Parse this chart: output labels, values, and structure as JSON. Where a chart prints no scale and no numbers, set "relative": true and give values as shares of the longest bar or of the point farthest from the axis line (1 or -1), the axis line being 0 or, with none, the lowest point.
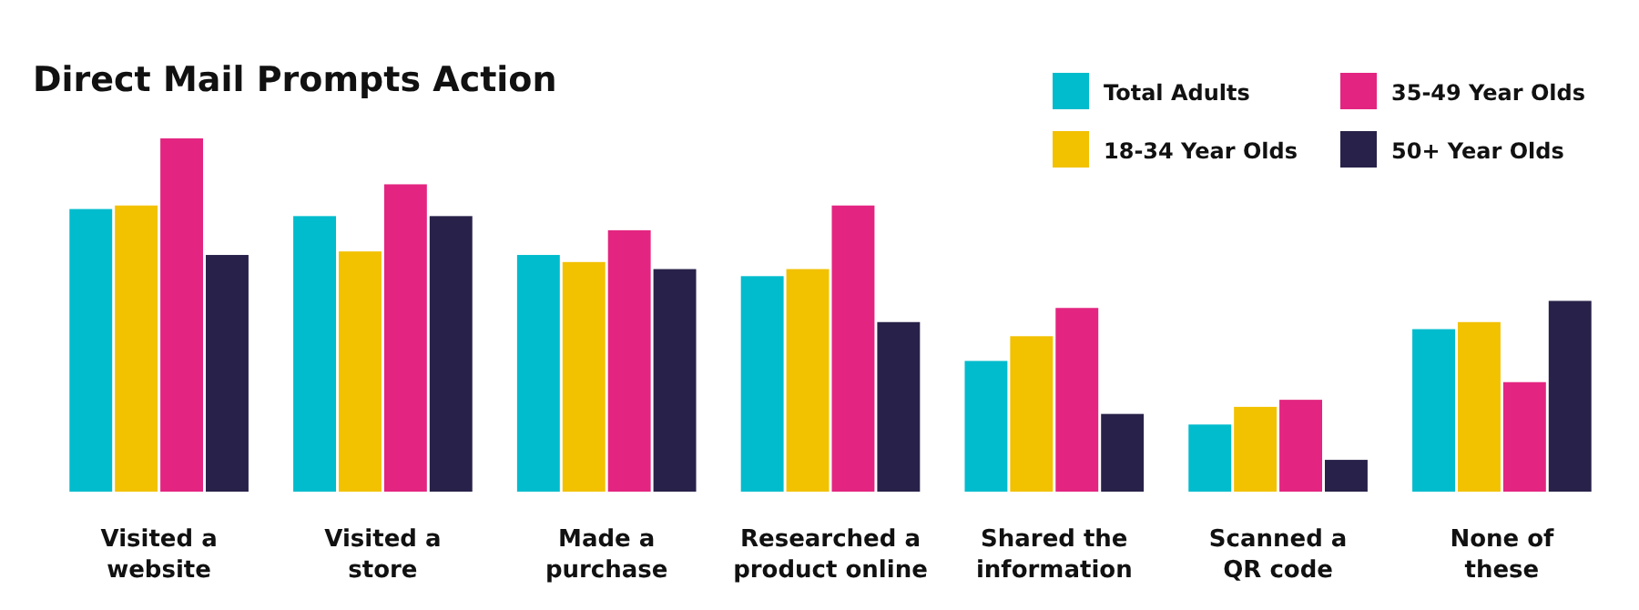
{
  "chart_data": {
    "type": "bar",
    "title": "Direct Mail Prompts Action",
    "relative": true,
    "legend": "top right",
    "categories": [
      "Visited a\nwebsite",
      "Visited a\nstore",
      "Made a\npurchase",
      "Researched a\nproduct online",
      "Shared the\ninformation",
      "Scanned a\nQR code",
      "None of\nthese"
    ],
    "series": [
      {
        "name": "Total Adults",
        "color": "#00bccd",
        "values": [
          0.8,
          0.78,
          0.67,
          0.61,
          0.37,
          0.19,
          0.46
        ]
      },
      {
        "name": "18-34 Year Olds",
        "color": "#f2c100",
        "values": [
          0.81,
          0.68,
          0.65,
          0.63,
          0.44,
          0.24,
          0.48
        ]
      },
      {
        "name": "35-49 Year Olds",
        "color": "#e32581",
        "values": [
          1,
          0.87,
          0.74,
          0.81,
          0.52,
          0.26,
          0.31
        ]
      },
      {
        "name": "50+ Year Olds",
        "color": "#28224a",
        "values": [
          0.67,
          0.78,
          0.63,
          0.48,
          0.22,
          0.09,
          0.54
        ]
      }
    ]
  }
}
